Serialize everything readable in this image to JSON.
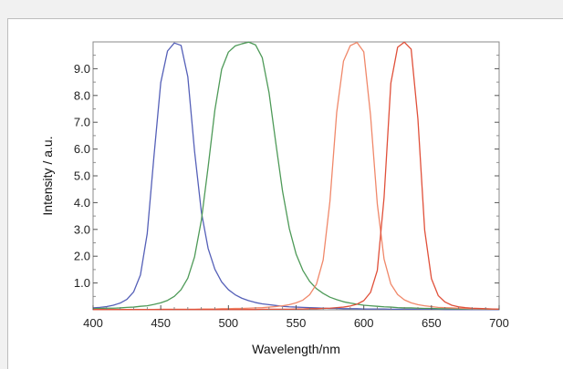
{
  "chart_data": {
    "type": "line",
    "xlabel": "Wavelength/nm",
    "ylabel": "Intensity / a.u.",
    "xlim": [
      400,
      700
    ],
    "ylim": [
      0,
      10
    ],
    "xticks": [
      400,
      450,
      500,
      550,
      600,
      650,
      700
    ],
    "yticks": [
      "1.0",
      "2.0",
      "3.0",
      "4.0",
      "5.0",
      "6.0",
      "7.0",
      "8.0",
      "9.0"
    ],
    "grid": false,
    "legend": "none",
    "x": [
      400,
      405,
      410,
      415,
      420,
      425,
      430,
      435,
      440,
      445,
      450,
      455,
      460,
      465,
      470,
      475,
      480,
      485,
      490,
      495,
      500,
      505,
      510,
      515,
      520,
      525,
      530,
      535,
      540,
      545,
      550,
      555,
      560,
      565,
      570,
      575,
      580,
      585,
      590,
      595,
      600,
      605,
      610,
      615,
      620,
      625,
      630,
      635,
      640,
      645,
      650,
      655,
      660,
      665,
      670,
      675,
      680,
      685,
      690,
      695,
      700
    ],
    "series": [
      {
        "color": "#5560b8",
        "peak": 462,
        "values": [
          0.07,
          0.09,
          0.12,
          0.17,
          0.25,
          0.39,
          0.67,
          1.3,
          2.84,
          5.74,
          8.48,
          9.66,
          9.96,
          9.87,
          8.7,
          5.91,
          3.65,
          2.29,
          1.51,
          1.04,
          0.75,
          0.56,
          0.43,
          0.34,
          0.27,
          0.22,
          0.19,
          0.16,
          0.13,
          0.11,
          0.1,
          0.09,
          0.08,
          0.07,
          0.06,
          0.05,
          0.05,
          0.04,
          0.04,
          0.04,
          0.03,
          0.03,
          0.03,
          0.03,
          0.02,
          0.02,
          0.02,
          0.02,
          0.02,
          0.02,
          0.02,
          0.02,
          0.01,
          0.01,
          0.01,
          0.01,
          0.01,
          0.01,
          0.01,
          0.01,
          0.01
        ]
      },
      {
        "color": "#4e9a58",
        "peak": 516,
        "values": [
          0.04,
          0.05,
          0.06,
          0.06,
          0.07,
          0.09,
          0.1,
          0.13,
          0.15,
          0.2,
          0.26,
          0.35,
          0.5,
          0.75,
          1.18,
          1.98,
          3.34,
          5.33,
          7.46,
          8.98,
          9.62,
          9.85,
          9.93,
          9.99,
          9.89,
          9.41,
          8.11,
          6.23,
          4.42,
          3.03,
          2.08,
          1.47,
          1.06,
          0.79,
          0.61,
          0.47,
          0.38,
          0.3,
          0.25,
          0.21,
          0.17,
          0.15,
          0.13,
          0.11,
          0.1,
          0.08,
          0.07,
          0.07,
          0.06,
          0.05,
          0.05,
          0.04,
          0.04,
          0.04,
          0.03,
          0.03,
          0.03,
          0.03,
          0.02,
          0.02,
          0.02
        ]
      },
      {
        "color": "#f0886a",
        "peak": 594,
        "values": [
          0.01,
          0.01,
          0.01,
          0.01,
          0.01,
          0.01,
          0.01,
          0.01,
          0.01,
          0.01,
          0.02,
          0.02,
          0.02,
          0.02,
          0.02,
          0.02,
          0.03,
          0.03,
          0.03,
          0.04,
          0.04,
          0.05,
          0.05,
          0.06,
          0.07,
          0.08,
          0.1,
          0.12,
          0.15,
          0.19,
          0.26,
          0.36,
          0.56,
          0.95,
          1.86,
          4.05,
          7.37,
          9.28,
          9.86,
          9.98,
          9.63,
          7.26,
          3.95,
          1.89,
          0.96,
          0.57,
          0.37,
          0.26,
          0.19,
          0.15,
          0.12,
          0.09,
          0.08,
          0.07,
          0.06,
          0.05,
          0.04,
          0.04,
          0.03,
          0.03,
          0.03
        ]
      },
      {
        "color": "#e0503a",
        "peak": 630,
        "values": [
          0.01,
          0.01,
          0.01,
          0.01,
          0.01,
          0.01,
          0.01,
          0.01,
          0.01,
          0.01,
          0.01,
          0.01,
          0.01,
          0.01,
          0.01,
          0.01,
          0.01,
          0.01,
          0.01,
          0.01,
          0.01,
          0.01,
          0.01,
          0.01,
          0.01,
          0.02,
          0.02,
          0.02,
          0.02,
          0.02,
          0.03,
          0.03,
          0.04,
          0.04,
          0.05,
          0.06,
          0.08,
          0.1,
          0.14,
          0.21,
          0.34,
          0.65,
          1.47,
          4.2,
          8.46,
          9.8,
          9.99,
          9.73,
          7.12,
          2.97,
          1.16,
          0.53,
          0.29,
          0.17,
          0.11,
          0.08,
          0.06,
          0.05,
          0.04,
          0.03,
          0.02
        ]
      }
    ]
  }
}
